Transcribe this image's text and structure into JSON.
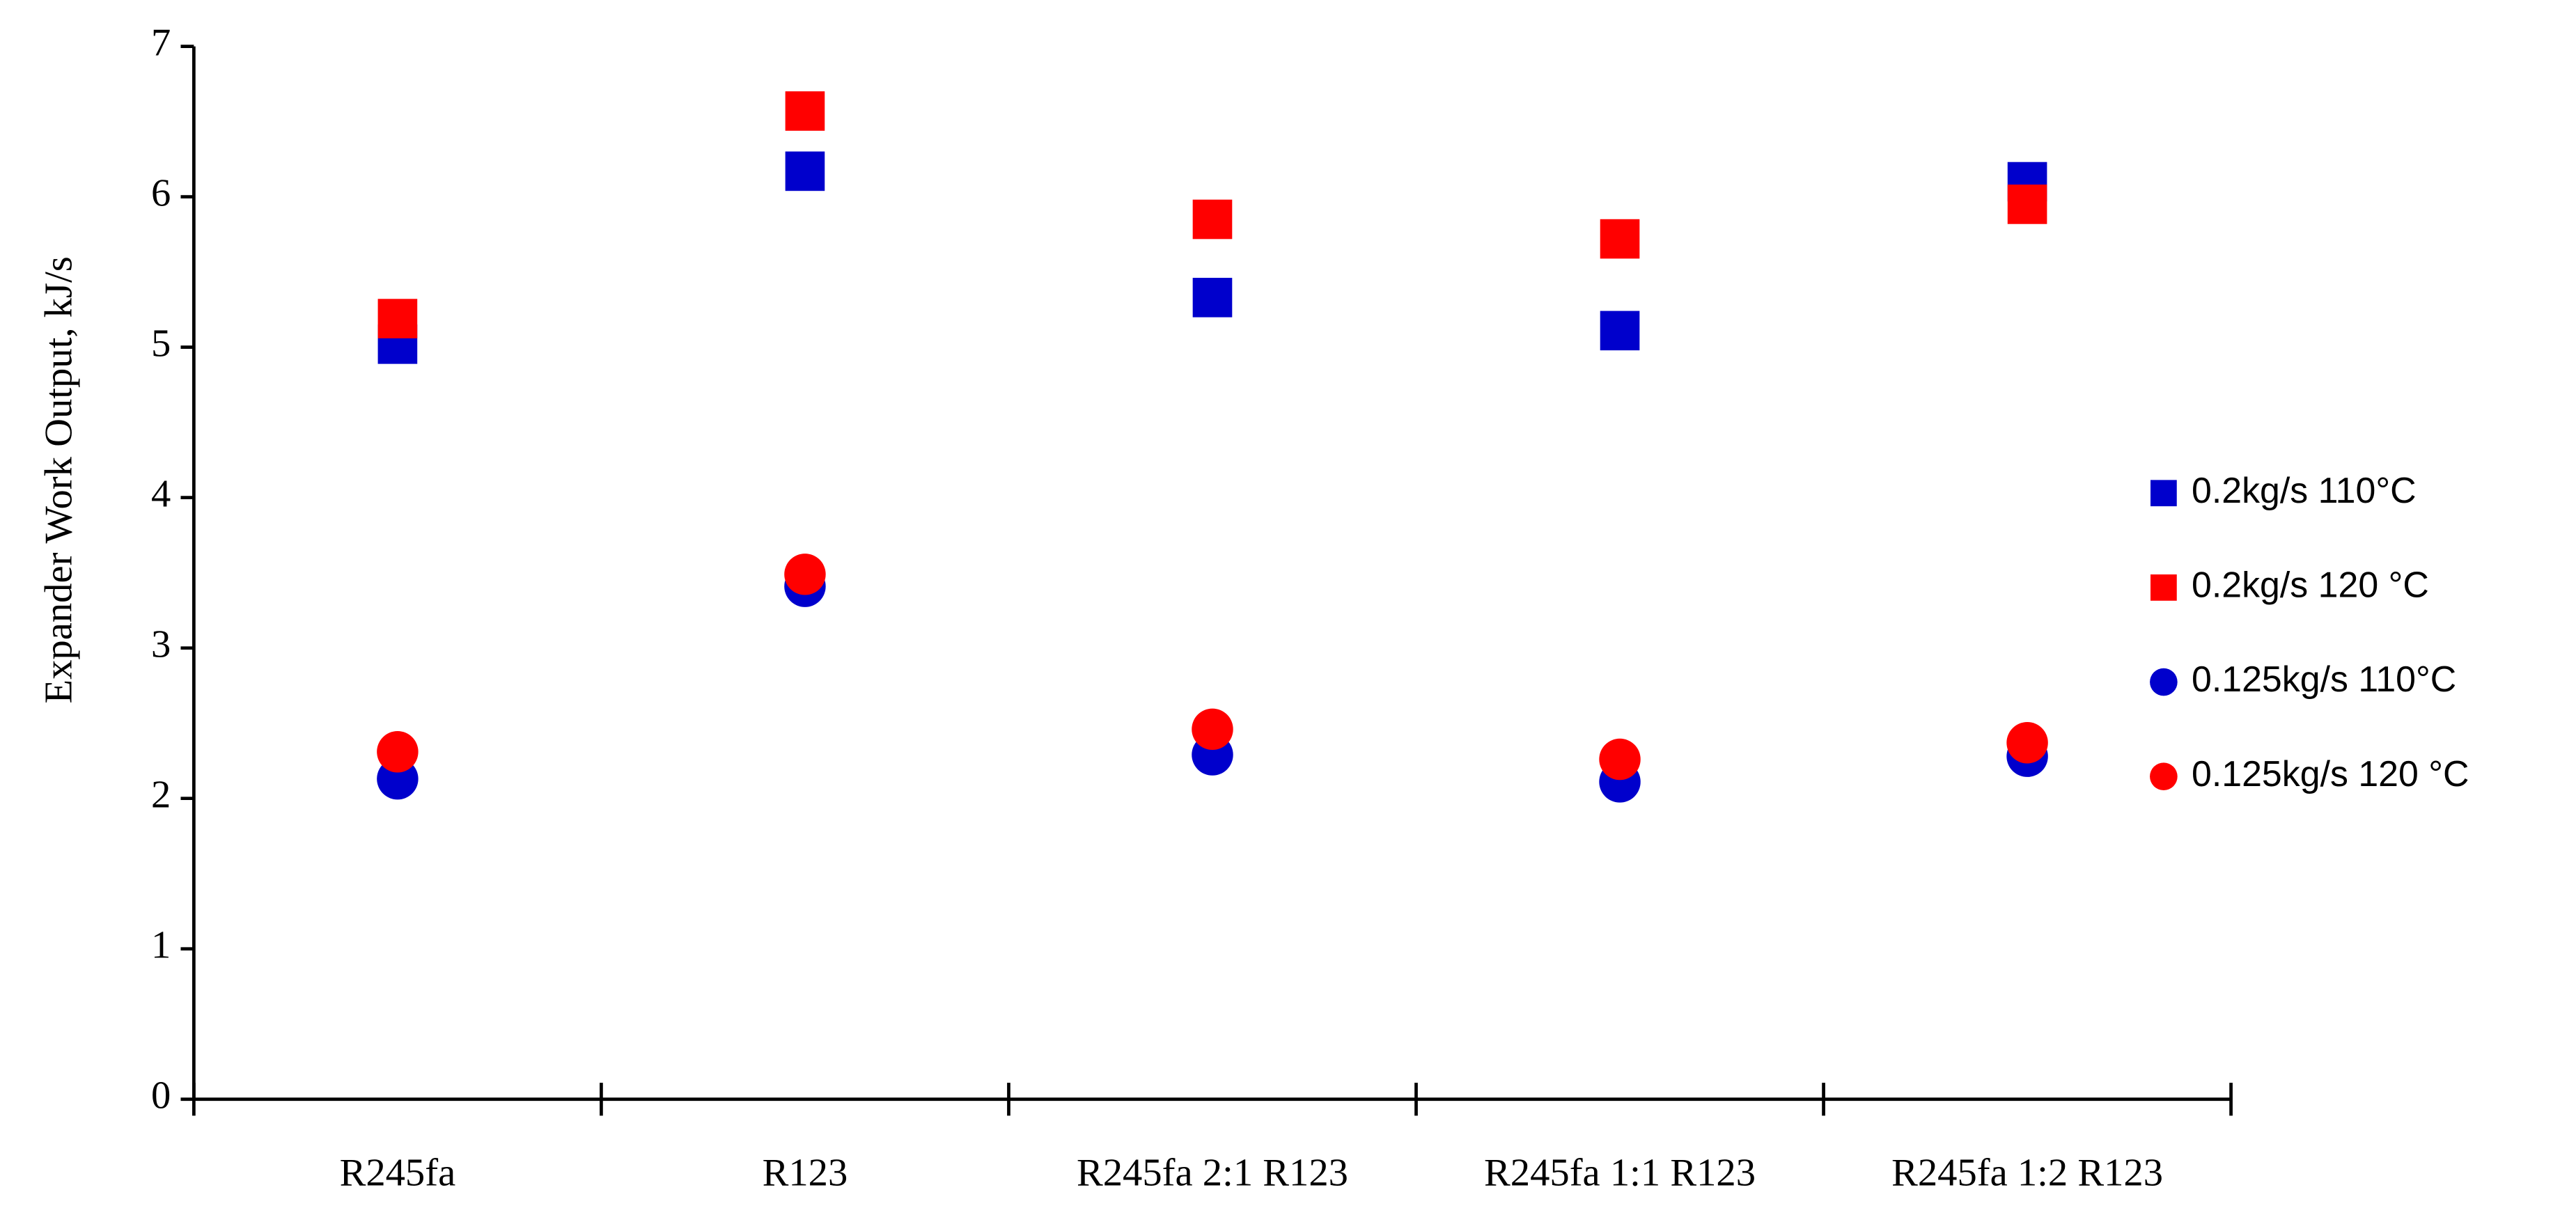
{
  "chart_data": {
    "type": "scatter",
    "y_label": "Expander Work Output, kJ/s",
    "categories": [
      "R245fa",
      "R123",
      "R245fa 2:1 R123",
      "R245fa 1:1 R123",
      "R245fa 1:2 R123"
    ],
    "ylim": [
      0,
      7
    ],
    "yticks": [
      0,
      1,
      2,
      3,
      4,
      5,
      6,
      7
    ],
    "grid": false,
    "legend": "right",
    "series": [
      {
        "name": "0.2kg/s 110°C",
        "color": "#0000cc",
        "marker": "square",
        "values": [
          5.02,
          6.17,
          5.33,
          5.11,
          6.1
        ]
      },
      {
        "name": "0.2kg/s 120 °C",
        "color": "#ff0000",
        "marker": "square",
        "values": [
          5.19,
          6.57,
          5.85,
          5.72,
          5.95
        ]
      },
      {
        "name": "0.125kg/s 110°C",
        "color": "#0000cc",
        "marker": "circle",
        "values": [
          2.13,
          3.41,
          2.29,
          2.11,
          2.28
        ]
      },
      {
        "name": "0.125kg/s 120 °C",
        "color": "#ff0000",
        "marker": "circle",
        "values": [
          2.31,
          3.49,
          2.46,
          2.26,
          2.37
        ]
      }
    ]
  }
}
